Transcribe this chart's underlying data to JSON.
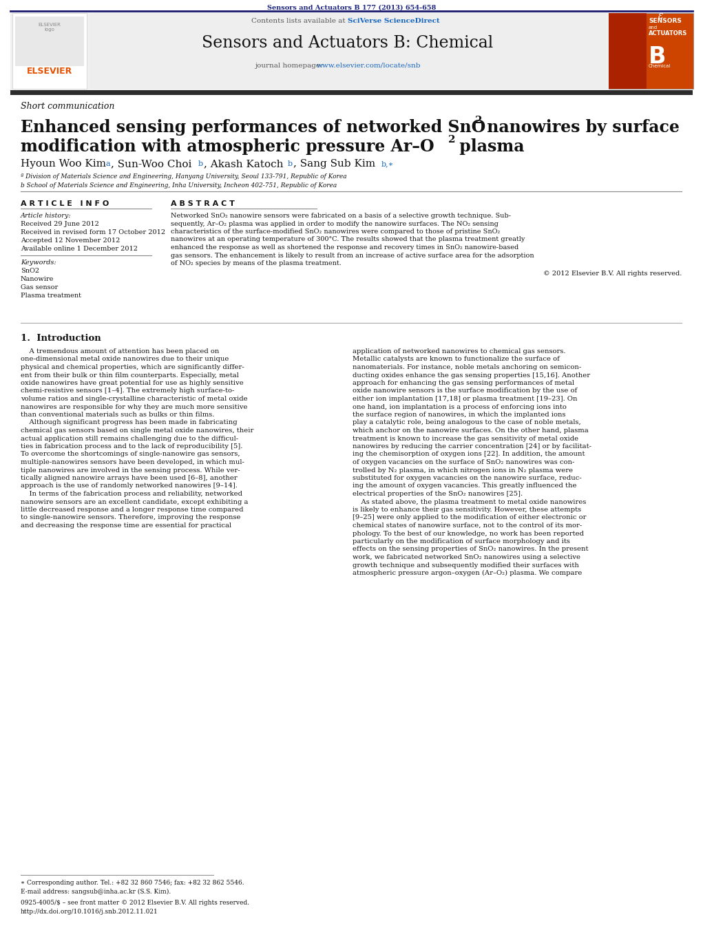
{
  "journal_ref": "Sensors and Actuators B 177 (2013) 654-658",
  "journal_ref_color": "#1a237e",
  "contents_text": "Contents lists available at ",
  "sciverse_text": "SciVerse ScienceDirect",
  "journal_name": "Sensors and Actuators B: Chemical",
  "journal_homepage_prefix": "journal homepage: ",
  "journal_url": "www.elsevier.com/locate/snb",
  "article_type": "Short communication",
  "affil_a": "ª Division of Materials Science and Engineering, Hanyang University, Seoul 133-791, Republic of Korea",
  "affil_b": "b School of Materials Science and Engineering, Inha University, Incheon 402-751, Republic of Korea",
  "article_info_header": "A R T I C L E   I N F O",
  "abstract_header": "A B S T R A C T",
  "article_history": "Article history:",
  "received": "Received 29 June 2012",
  "received_revised": "Received in revised form 17 October 2012",
  "accepted": "Accepted 12 November 2012",
  "available": "Available online 1 December 2012",
  "keywords_header": "Keywords:",
  "keywords": [
    "SnO2",
    "Nanowire",
    "Gas sensor",
    "Plasma treatment"
  ],
  "copyright": "© 2012 Elsevier B.V. All rights reserved.",
  "intro_header": "1.  Introduction",
  "footer_left": "0925-4005/$ – see front matter © 2012 Elsevier B.V. All rights reserved.\nhttp://dx.doi.org/10.1016/j.snb.2012.11.021",
  "corresponding_note": "∗ Corresponding author. Tel.: +82 32 860 7546; fax: +82 32 862 5546.\nE-mail address: sangsub@inha.ac.kr (S.S. Kim).",
  "header_bg": "#f0f0f0",
  "dark_bar_color": "#333333",
  "link_color": "#1565c0",
  "abstract_lines": [
    "Networked SnO₂ nanowire sensors were fabricated on a basis of a selective growth technique. Sub-",
    "sequently, Ar–O₂ plasma was applied in order to modify the nanowire surfaces. The NO₂ sensing",
    "characteristics of the surface-modified SnO₂ nanowires were compared to those of pristine SnO₂",
    "nanowires at an operating temperature of 300°C. The results showed that the plasma treatment greatly",
    "enhanced the response as well as shortened the response and recovery times in SnO₂ nanowire-based",
    "gas sensors. The enhancement is likely to result from an increase of active surface area for the adsorption",
    "of NO₂ species by means of the plasma treatment."
  ],
  "intro_col1_lines": [
    "    A tremendous amount of attention has been placed on",
    "one-dimensional metal oxide nanowires due to their unique",
    "physical and chemical properties, which are significantly differ-",
    "ent from their bulk or thin film counterparts. Especially, metal",
    "oxide nanowires have great potential for use as highly sensitive",
    "chemi-resistive sensors [1–4]. The extremely high surface-to-",
    "volume ratios and single-crystalline characteristic of metal oxide",
    "nanowires are responsible for why they are much more sensitive",
    "than conventional materials such as bulks or thin films.",
    "    Although significant progress has been made in fabricating",
    "chemical gas sensors based on single metal oxide nanowires, their",
    "actual application still remains challenging due to the difficul-",
    "ties in fabrication process and to the lack of reproducibility [5].",
    "To overcome the shortcomings of single-nanowire gas sensors,",
    "multiple-nanowires sensors have been developed, in which mul-",
    "tiple nanowires are involved in the sensing process. While ver-",
    "tically aligned nanowire arrays have been used [6–8], another",
    "approach is the use of randomly networked nanowires [9–14].",
    "    In terms of the fabrication process and reliability, networked",
    "nanowire sensors are an excellent candidate, except exhibiting a",
    "little decreased response and a longer response time compared",
    "to single-nanowire sensors. Therefore, improving the response",
    "and decreasing the response time are essential for practical"
  ],
  "intro_col2_lines": [
    "application of networked nanowires to chemical gas sensors.",
    "Metallic catalysts are known to functionalize the surface of",
    "nanomaterials. For instance, noble metals anchoring on semicon-",
    "ducting oxides enhance the gas sensing properties [15,16]. Another",
    "approach for enhancing the gas sensing performances of metal",
    "oxide nanowire sensors is the surface modification by the use of",
    "either ion implantation [17,18] or plasma treatment [19–23]. On",
    "one hand, ion implantation is a process of enforcing ions into",
    "the surface region of nanowires, in which the implanted ions",
    "play a catalytic role, being analogous to the case of noble metals,",
    "which anchor on the nanowire surfaces. On the other hand, plasma",
    "treatment is known to increase the gas sensitivity of metal oxide",
    "nanowires by reducing the carrier concentration [24] or by facilitat-",
    "ing the chemisorption of oxygen ions [22]. In addition, the amount",
    "of oxygen vacancies on the surface of SnO₂ nanowires was con-",
    "trolled by N₂ plasma, in which nitrogen ions in N₂ plasma were",
    "substituted for oxygen vacancies on the nanowire surface, reduc-",
    "ing the amount of oxygen vacancies. This greatly influenced the",
    "electrical properties of the SnO₂ nanowires [25].",
    "    As stated above, the plasma treatment to metal oxide nanowires",
    "is likely to enhance their gas sensitivity. However, these attempts",
    "[9–25] were only applied to the modification of either electronic or",
    "chemical states of nanowire surface, not to the control of its mor-",
    "phology. To the best of our knowledge, no work has been reported",
    "particularly on the modification of surface morphology and its",
    "effects on the sensing properties of SnO₂ nanowires. In the present",
    "work, we fabricated networked SnO₂ nanowires using a selective",
    "growth technique and subsequently modified their surfaces with",
    "atmospheric pressure argon–oxygen (Ar–O₂) plasma. We compare"
  ]
}
